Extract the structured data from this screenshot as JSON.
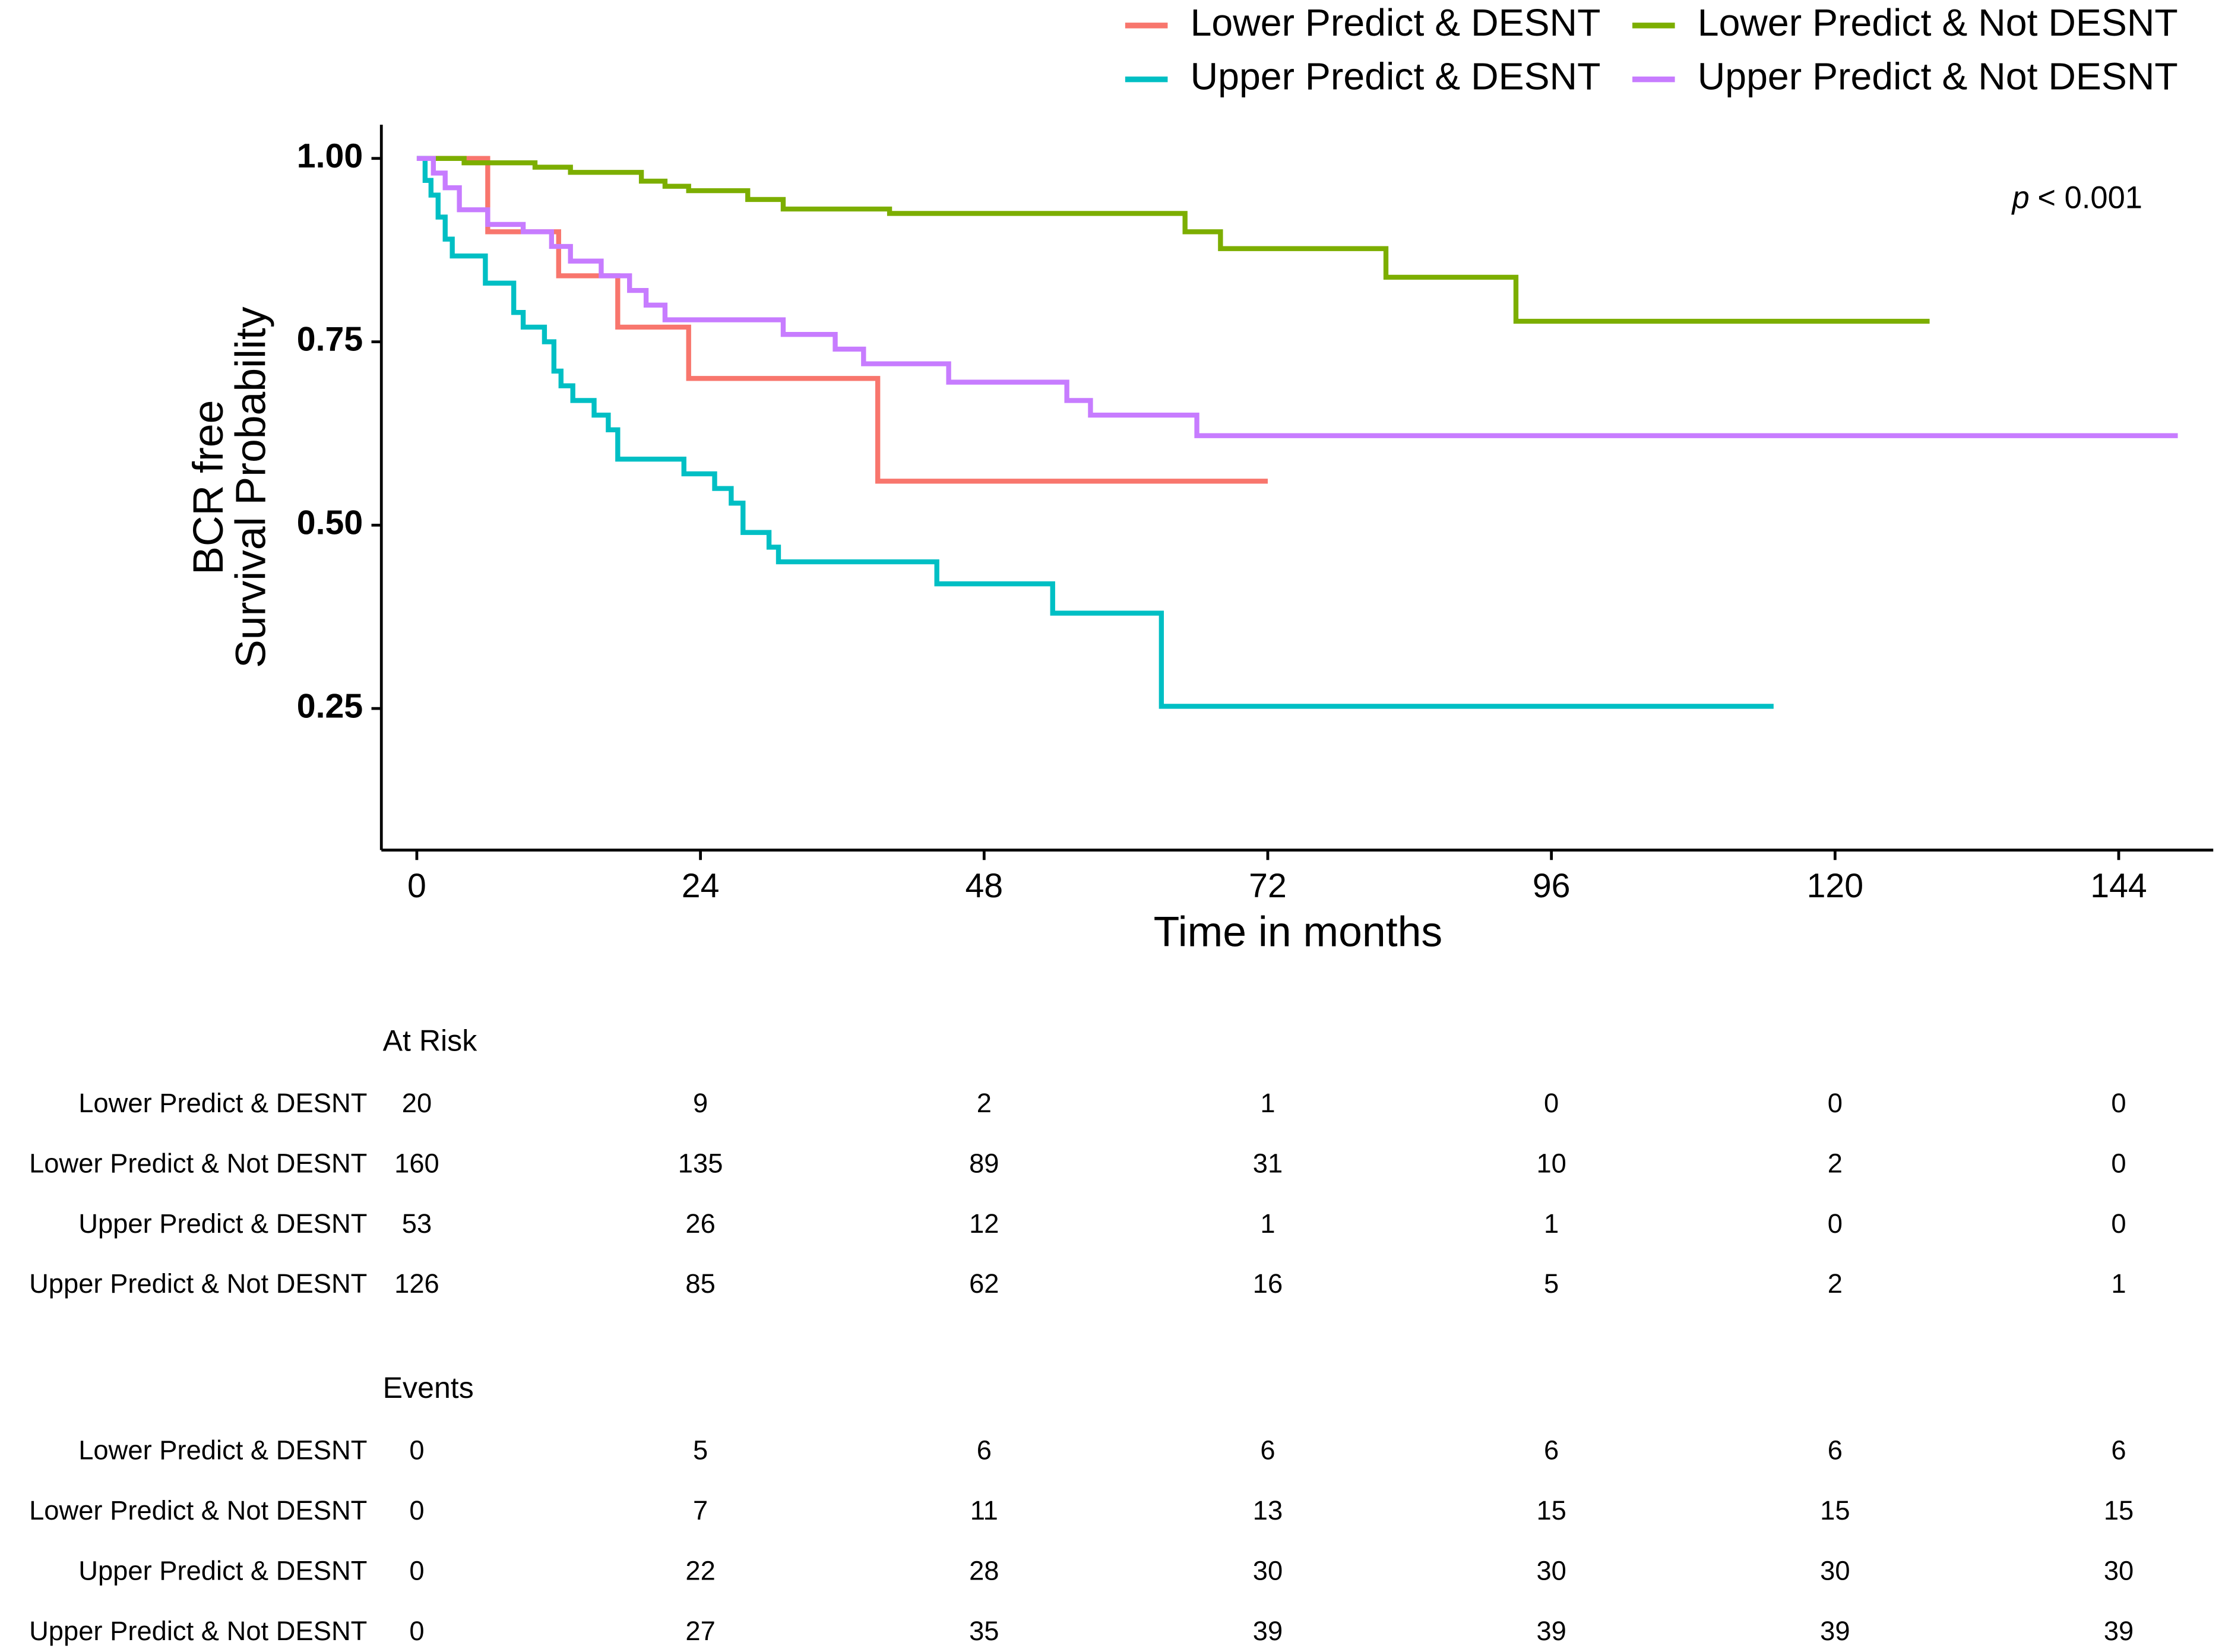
{
  "chart_data": {
    "type": "step",
    "xlabel": "Time in months",
    "ylabel": [
      "BCR free",
      "Survival Probability"
    ],
    "annotation_italic": "p",
    "annotation": "< 0.001",
    "xlim": [
      -3,
      152
    ],
    "ylim": [
      0.057,
      1.046
    ],
    "xticks": [
      0,
      24,
      48,
      72,
      96,
      120,
      144
    ],
    "yticks": [
      {
        "value": 0.25,
        "label": "0.25"
      },
      {
        "value": 0.5,
        "label": "0.50"
      },
      {
        "value": 0.75,
        "label": "0.75"
      },
      {
        "value": 1,
        "label": "1.00"
      }
    ],
    "series": [
      {
        "name": "Lower Predict & DESNT",
        "color": "#F8766D",
        "x": [
          0,
          6,
          12,
          17,
          23,
          39,
          72
        ],
        "values": [
          1,
          0.9,
          0.84,
          0.77,
          0.7,
          0.56,
          0.56
        ]
      },
      {
        "name": "Lower Predict & Not DESNT",
        "color": "#7CAE00",
        "x": [
          0,
          4,
          10,
          13,
          19,
          21,
          23,
          28,
          31,
          40,
          65,
          68,
          82,
          93,
          128
        ],
        "values": [
          1,
          0.994,
          0.988,
          0.981,
          0.969,
          0.962,
          0.956,
          0.944,
          0.931,
          0.925,
          0.9,
          0.877,
          0.838,
          0.778,
          0.778
        ]
      },
      {
        "name": "Upper Predict & DESNT",
        "color": "#00BFC4",
        "x": [
          0,
          0.7,
          1.2,
          1.8,
          2.4,
          3,
          5.8,
          8.2,
          9,
          10.8,
          11.6,
          12.2,
          13.2,
          15,
          16.2,
          17,
          22.6,
          25.2,
          26.6,
          27.6,
          29.8,
          30.6,
          44,
          53.8,
          63,
          114.8
        ],
        "values": [
          1,
          0.97,
          0.95,
          0.92,
          0.89,
          0.867,
          0.83,
          0.79,
          0.77,
          0.75,
          0.71,
          0.69,
          0.67,
          0.65,
          0.63,
          0.59,
          0.57,
          0.55,
          0.53,
          0.49,
          0.47,
          0.45,
          0.42,
          0.38,
          0.253,
          0.253
        ]
      },
      {
        "name": "Upper Predict & Not DESNT",
        "color": "#C77CFF",
        "x": [
          0,
          1.4,
          2.4,
          3.6,
          6,
          9,
          11.4,
          13,
          15.6,
          18,
          19.4,
          21,
          31,
          35.4,
          37.8,
          45,
          55,
          57,
          66,
          149
        ],
        "values": [
          1,
          0.98,
          0.96,
          0.93,
          0.91,
          0.9,
          0.88,
          0.86,
          0.84,
          0.82,
          0.8,
          0.78,
          0.76,
          0.74,
          0.72,
          0.695,
          0.67,
          0.65,
          0.622,
          0.622
        ]
      }
    ],
    "at_risk": {
      "title": "At Risk",
      "rows": [
        {
          "name": "Lower Predict & DESNT",
          "values": [
            20,
            9,
            2,
            1,
            0,
            0,
            0
          ]
        },
        {
          "name": "Lower Predict & Not DESNT",
          "values": [
            160,
            135,
            89,
            31,
            10,
            2,
            0
          ]
        },
        {
          "name": "Upper Predict & DESNT",
          "values": [
            53,
            26,
            12,
            1,
            1,
            0,
            0
          ]
        },
        {
          "name": "Upper Predict & Not DESNT",
          "values": [
            126,
            85,
            62,
            16,
            5,
            2,
            1
          ]
        }
      ]
    },
    "events": {
      "title": "Events",
      "rows": [
        {
          "name": "Lower Predict & DESNT",
          "values": [
            0,
            5,
            6,
            6,
            6,
            6,
            6
          ]
        },
        {
          "name": "Lower Predict & Not DESNT",
          "values": [
            0,
            7,
            11,
            13,
            15,
            15,
            15
          ]
        },
        {
          "name": "Upper Predict & DESNT",
          "values": [
            0,
            22,
            28,
            30,
            30,
            30,
            30
          ]
        },
        {
          "name": "Upper Predict & Not DESNT",
          "values": [
            0,
            27,
            35,
            39,
            39,
            39,
            39
          ]
        }
      ]
    }
  }
}
